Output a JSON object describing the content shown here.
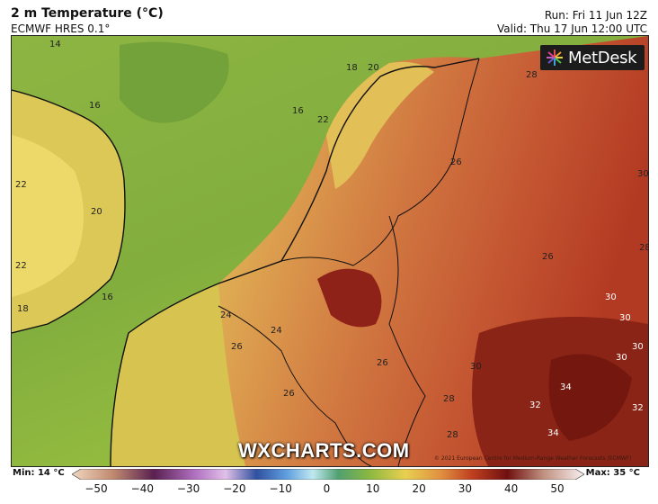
{
  "header": {
    "title": "2 m Temperature (°C)",
    "model": "ECMWF HRES 0.1°",
    "run": "Run: Fri 11 Jun 12Z",
    "valid": "Valid: Thu 17 Jun 12:00 UTC"
  },
  "logo": {
    "text": "MetDesk",
    "icon": "starburst-icon"
  },
  "watermark": "WXCHARTS.COM",
  "credit": "© 2021 European Centre for Medium-Range Weather Forecasts (ECMWF)",
  "legend": {
    "min_label": "Min: 14 °C",
    "max_label": "Max: 35 °C",
    "ticks": [
      "−50",
      "−40",
      "−30",
      "−20",
      "−10",
      "0",
      "10",
      "20",
      "30",
      "40",
      "50"
    ]
  },
  "contour_labels": [
    "14",
    "16",
    "16",
    "16",
    "18",
    "18",
    "20",
    "20",
    "22",
    "22",
    "22",
    "24",
    "24",
    "26",
    "26",
    "26",
    "26",
    "26",
    "28",
    "28",
    "28",
    "28",
    "30",
    "30",
    "30",
    "30",
    "30",
    "32",
    "32",
    "34",
    "34",
    "30"
  ],
  "colors": {
    "sea_cool": "#7fad3e",
    "sea_warm": "#a9c43f",
    "land_yellow": "#e8d25a",
    "land_orange": "#d98a4c",
    "land_red": "#c4542e",
    "land_deep": "#9a2418",
    "border": "#111111"
  }
}
